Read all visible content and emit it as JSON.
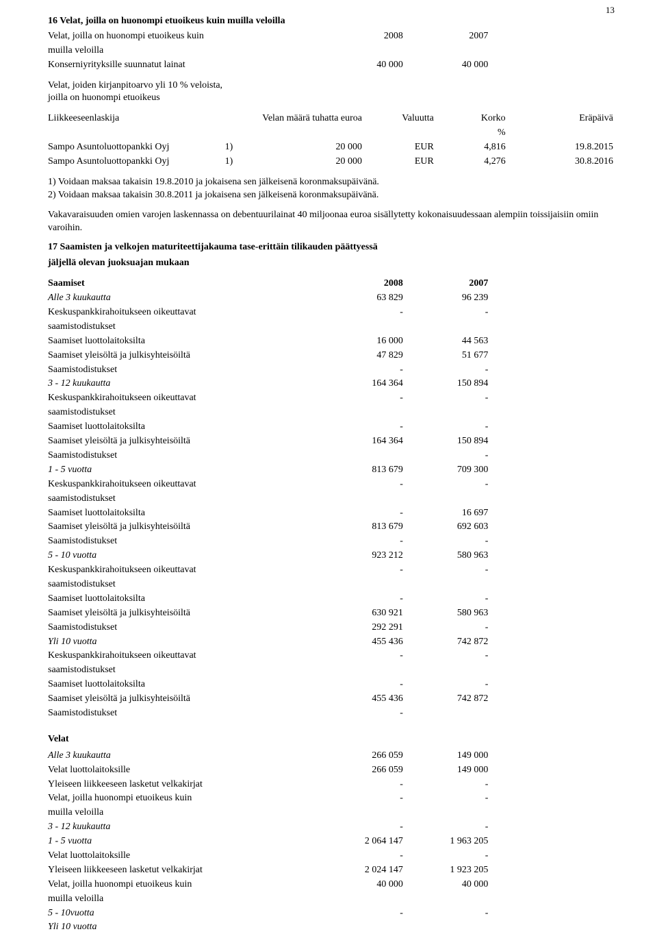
{
  "page_number": "13",
  "section16": {
    "title": "16 Velat, joilla on huonompi etuoikeus kuin muilla veloilla",
    "row1_label_a": "Velat, joilla on huonompi etuoikeus kuin",
    "row1_label_b": "muilla veloilla",
    "col_2008": "2008",
    "col_2007": "2007",
    "row2_label": "Konserniyrityksille suunnatut lainat",
    "row2_2008": "40 000",
    "row2_2007": "40 000",
    "row3_label_a": "Velat, joiden kirjanpitoarvo yli 10 % veloista,",
    "row3_label_b": "joilla on huonompi etuoikeus",
    "loan_headers": {
      "lender": "Liikkeeseenlaskija",
      "amount": "Velan määrä tuhatta euroa",
      "currency": "Valuutta",
      "rate": "Korko",
      "rate_unit": "%",
      "due": "Eräpäivä"
    },
    "loans": [
      {
        "lender": "Sampo Asuntoluottopankki Oyj",
        "note": "1)",
        "amount": "20 000",
        "currency": "EUR",
        "rate": "4,816",
        "due": "19.8.2015"
      },
      {
        "lender": "Sampo Asuntoluottopankki Oyj",
        "note": "1)",
        "amount": "20 000",
        "currency": "EUR",
        "rate": "4,276",
        "due": "30.8.2016"
      }
    ],
    "note1": "1) Voidaan maksaa takaisin 19.8.2010 ja jokaisena sen jälkeisenä koronmaksupäivänä.",
    "note2": "2) Voidaan maksaa takaisin 30.8.2011 ja jokaisena sen jälkeisenä koronmaksupäivänä.",
    "para": "Vakavaraisuuden omien varojen laskennassa on debentuurilainat 40 miljoonaa euroa sisällytetty kokonaisuudessaan alempiin toissijaisiin omiin varoihin."
  },
  "section17": {
    "title": "17 Saamisten ja velkojen maturiteettijakauma tase-erittäin tilikauden päättyessä",
    "subtitle": "jäljellä olevan juoksuajan mukaan",
    "saamiset_heading": "Saamiset",
    "col_2008": "2008",
    "col_2007": "2007",
    "labels": {
      "alle3": "Alle 3 kuukautta",
      "cb_a": "Keskuspankkirahoitukseen oikeuttavat",
      "cb_b": "saamistodistukset",
      "luotto": "Saamiset luottolaitoksilta",
      "yleis": "Saamiset yleisöltä ja julkisyhteisöiltä",
      "todist": "Saamistodistukset",
      "k3_12": "3 - 12 kuukautta",
      "v1_5": "1 - 5 vuotta",
      "v5_10": "5 - 10 vuotta",
      "yli10": "Yli 10 vuotta"
    },
    "saamiset": {
      "alle3": {
        "v2008": "63 829",
        "v2007": "96 239"
      },
      "alle3_cb": {
        "v2008": "-",
        "v2007": "-"
      },
      "alle3_luotto": {
        "v2008": "16 000",
        "v2007": "44 563"
      },
      "alle3_yleis": {
        "v2008": "47 829",
        "v2007": "51 677"
      },
      "alle3_todist": {
        "v2008": "-",
        "v2007": "-"
      },
      "k3_12": {
        "v2008": "164 364",
        "v2007": "150 894"
      },
      "k3_12_cb": {
        "v2008": "-",
        "v2007": "-"
      },
      "k3_12_luotto": {
        "v2008": "-",
        "v2007": "-"
      },
      "k3_12_yleis": {
        "v2008": "164 364",
        "v2007": "150 894"
      },
      "k3_12_todist": {
        "v2008": "",
        "v2007": "-"
      },
      "v1_5": {
        "v2008": "813 679",
        "v2007": "709 300"
      },
      "v1_5_cb": {
        "v2008": "-",
        "v2007": "-"
      },
      "v1_5_luotto": {
        "v2008": "-",
        "v2007": "16 697"
      },
      "v1_5_yleis": {
        "v2008": "813 679",
        "v2007": "692 603"
      },
      "v1_5_todist": {
        "v2008": "-",
        "v2007": "-"
      },
      "v5_10": {
        "v2008": "923 212",
        "v2007": "580 963"
      },
      "v5_10_cb": {
        "v2008": "-",
        "v2007": "-"
      },
      "v5_10_luotto": {
        "v2008": "-",
        "v2007": "-"
      },
      "v5_10_yleis": {
        "v2008": "630 921",
        "v2007": "580 963"
      },
      "v5_10_todist": {
        "v2008": "292 291",
        "v2007": "-"
      },
      "yli10": {
        "v2008": "455 436",
        "v2007": "742 872"
      },
      "yli10_cb": {
        "v2008": "-",
        "v2007": "-"
      },
      "yli10_luotto": {
        "v2008": "-",
        "v2007": "-"
      },
      "yli10_yleis": {
        "v2008": "455 436",
        "v2007": "742 872"
      },
      "yli10_todist": {
        "v2008": "-",
        "v2007": ""
      }
    },
    "velat_heading": "Velat",
    "vlabels": {
      "alle3": "Alle 3 kuukautta",
      "luotto": "Velat luottolaitoksille",
      "velkakirjat": "Yleiseen liikkeeseen lasketut velkakirjat",
      "huono_a": "Velat, joilla huonompi etuoikeus kuin",
      "huono_b": "muilla veloilla",
      "k3_12": "3 - 12 kuukautta",
      "v1_5": "1 - 5 vuotta",
      "v5_10": "5 - 10vuotta",
      "yli10": "Yli 10 vuotta"
    },
    "velat": {
      "alle3": {
        "v2008": "266 059",
        "v2007": "149 000"
      },
      "alle3_luotto": {
        "v2008": "266 059",
        "v2007": "149 000"
      },
      "alle3_velkakirjat": {
        "v2008": "-",
        "v2007": "-"
      },
      "alle3_huono": {
        "v2008": "-",
        "v2007": "-"
      },
      "k3_12": {
        "v2008": "-",
        "v2007": "-"
      },
      "v1_5": {
        "v2008": "2 064 147",
        "v2007": "1 963 205"
      },
      "v1_5_luotto": {
        "v2008": "-",
        "v2007": "-"
      },
      "v1_5_velkakirjat": {
        "v2008": "2 024 147",
        "v2007": "1 923 205"
      },
      "v1_5_huono": {
        "v2008": "40 000",
        "v2007": "40 000"
      },
      "v5_10": {
        "v2008": "-",
        "v2007": "-"
      },
      "yli10": {
        "v2008": "",
        "v2007": ""
      }
    }
  }
}
